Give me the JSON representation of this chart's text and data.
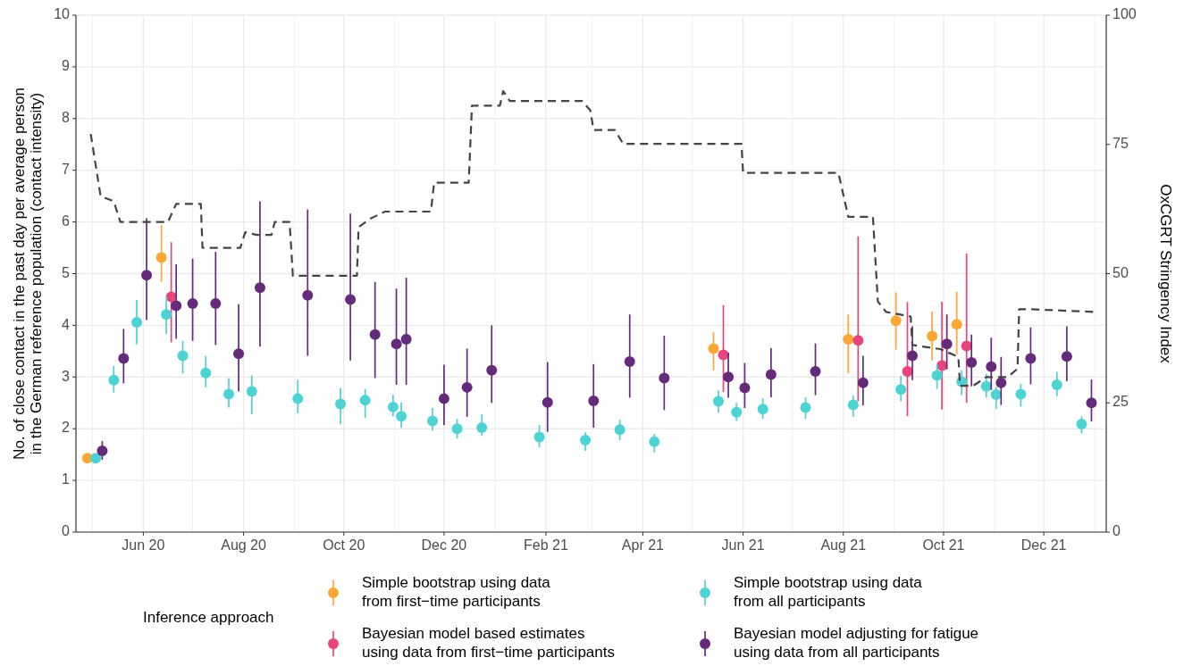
{
  "chart_data": {
    "type": "scatter",
    "ylabel": "No. of close contact in the past day per average person\nin the German reference population (contact intensity)",
    "y2label": "OxCGRT Stringency Index",
    "legend_title": "Inference approach",
    "legend": "bottom",
    "grid": true,
    "marker": "circle",
    "xlim": [
      "2020-04-21",
      "2022-01-08"
    ],
    "xticks": [
      {
        "value": "2020-05-01",
        "label": null
      },
      {
        "value": "2020-06-01",
        "label": "Jun 20"
      },
      {
        "value": "2020-07-01",
        "label": null
      },
      {
        "value": "2020-08-01",
        "label": "Aug 20"
      },
      {
        "value": "2020-09-01",
        "label": null
      },
      {
        "value": "2020-10-01",
        "label": "Oct 20"
      },
      {
        "value": "2020-11-01",
        "label": null
      },
      {
        "value": "2020-12-01",
        "label": "Dec 20"
      },
      {
        "value": "2021-01-01",
        "label": null
      },
      {
        "value": "2021-02-01",
        "label": "Feb 21"
      },
      {
        "value": "2021-03-01",
        "label": null
      },
      {
        "value": "2021-04-01",
        "label": "Apr 21"
      },
      {
        "value": "2021-05-01",
        "label": null
      },
      {
        "value": "2021-06-01",
        "label": "Jun 21"
      },
      {
        "value": "2021-07-01",
        "label": null
      },
      {
        "value": "2021-08-01",
        "label": "Aug 21"
      },
      {
        "value": "2021-09-01",
        "label": null
      },
      {
        "value": "2021-10-01",
        "label": "Oct 21"
      },
      {
        "value": "2021-11-01",
        "label": null
      },
      {
        "value": "2021-12-01",
        "label": "Dec 21"
      },
      {
        "value": "2022-01-01",
        "label": null
      }
    ],
    "ylim": [
      0,
      10
    ],
    "yticks": [
      0,
      1,
      2,
      3,
      4,
      5,
      6,
      7,
      8,
      9,
      10
    ],
    "y2lim": [
      0,
      100
    ],
    "y2ticks": [
      0,
      25,
      50,
      75,
      100
    ],
    "series": [
      {
        "name": "Simple bootstrap using data\nfrom first−time participants",
        "color": "#fca636",
        "x": [
          "2020-04-28",
          "2020-06-12",
          "2021-05-14",
          "2021-08-04",
          "2021-09-02",
          "2021-09-24",
          "2021-10-09"
        ],
        "values": [
          1.43,
          5.31,
          3.55,
          3.73,
          4.09,
          3.79,
          4.02
        ],
        "errors": [
          null,
          [
            4.84,
            5.94
          ],
          [
            3.13,
            3.87
          ],
          [
            3.07,
            4.21
          ],
          [
            3.53,
            4.64
          ],
          [
            3.32,
            4.27
          ],
          [
            3.44,
            4.65
          ]
        ]
      },
      {
        "name": "Bayesian model based estimates\nusing data from first−time participants",
        "color": "#e7457b",
        "x": [
          "2020-06-18",
          "2021-05-20",
          "2021-08-10",
          "2021-09-09",
          "2021-09-30",
          "2021-10-15"
        ],
        "values": [
          4.55,
          3.43,
          3.71,
          3.11,
          3.22,
          3.6
        ],
        "errors": [
          [
            3.67,
            5.61
          ],
          [
            2.71,
            4.39
          ],
          [
            2.53,
            5.72
          ],
          [
            2.24,
            4.45
          ],
          [
            2.37,
            4.46
          ],
          [
            2.5,
            5.39
          ]
        ]
      },
      {
        "name": "Simple bootstrap using data\nfrom all participants",
        "color": "#4dd3d3",
        "x": [
          "2020-05-03",
          "2020-05-14",
          "2020-05-28",
          "2020-06-15",
          "2020-06-25",
          "2020-07-09",
          "2020-07-23",
          "2020-08-06",
          "2020-09-03",
          "2020-09-29",
          "2020-10-14",
          "2020-10-31",
          "2020-11-05",
          "2020-11-24",
          "2020-12-09",
          "2020-12-24",
          "2021-01-28",
          "2021-02-25",
          "2021-03-18",
          "2021-04-08",
          "2021-05-17",
          "2021-05-28",
          "2021-06-13",
          "2021-07-09",
          "2021-08-07",
          "2021-09-05",
          "2021-09-27",
          "2021-10-12",
          "2021-10-27",
          "2021-11-02",
          "2021-11-17",
          "2021-12-09",
          "2021-12-24"
        ],
        "values": [
          1.43,
          2.94,
          4.06,
          4.21,
          3.41,
          3.08,
          2.67,
          2.72,
          2.58,
          2.48,
          2.55,
          2.42,
          2.24,
          2.15,
          2.0,
          2.02,
          1.84,
          1.78,
          1.98,
          1.75,
          2.53,
          2.32,
          2.38,
          2.41,
          2.46,
          2.76,
          3.03,
          2.91,
          2.82,
          2.66,
          2.67,
          2.85,
          2.09
        ],
        "errors": [
          null,
          [
            2.7,
            3.22
          ],
          [
            3.63,
            4.49
          ],
          [
            3.83,
            4.56
          ],
          [
            3.07,
            3.7
          ],
          [
            2.8,
            3.41
          ],
          [
            2.41,
            2.98
          ],
          [
            2.28,
            3.03
          ],
          [
            2.3,
            2.94
          ],
          [
            2.09,
            2.79
          ],
          [
            2.21,
            2.77
          ],
          [
            2.24,
            2.66
          ],
          [
            2.02,
            2.51
          ],
          [
            1.96,
            2.4
          ],
          [
            1.81,
            2.19
          ],
          [
            1.86,
            2.28
          ],
          [
            1.64,
            2.07
          ],
          [
            1.57,
            1.93
          ],
          [
            1.78,
            2.17
          ],
          [
            1.54,
            1.9
          ],
          [
            2.31,
            2.74
          ],
          [
            2.15,
            2.5
          ],
          [
            2.19,
            2.59
          ],
          [
            2.19,
            2.61
          ],
          [
            2.23,
            2.64
          ],
          [
            2.53,
            3.02
          ],
          [
            2.77,
            3.25
          ],
          [
            2.65,
            3.13
          ],
          [
            2.6,
            3.06
          ],
          [
            2.38,
            2.81
          ],
          [
            2.43,
            2.87
          ],
          [
            2.63,
            3.1
          ],
          [
            1.91,
            2.24
          ]
        ]
      },
      {
        "name": "Bayesian model adjusting for fatigue\nusing data from all participants",
        "color": "#652a7a",
        "x": [
          "2020-05-07",
          "2020-05-20",
          "2020-06-03",
          "2020-06-21",
          "2020-07-01",
          "2020-07-15",
          "2020-07-29",
          "2020-08-11",
          "2020-09-09",
          "2020-10-05",
          "2020-10-20",
          "2020-11-02",
          "2020-11-08",
          "2020-12-01",
          "2020-12-15",
          "2020-12-30",
          "2021-02-02",
          "2021-03-02",
          "2021-03-24",
          "2021-04-14",
          "2021-05-23",
          "2021-06-02",
          "2021-06-18",
          "2021-07-15",
          "2021-08-13",
          "2021-09-12",
          "2021-10-03",
          "2021-10-18",
          "2021-10-30",
          "2021-11-05",
          "2021-11-23",
          "2021-12-15",
          "2021-12-30"
        ],
        "values": [
          1.57,
          3.36,
          4.97,
          4.38,
          4.42,
          4.42,
          3.45,
          4.73,
          4.58,
          4.5,
          3.82,
          3.64,
          3.73,
          2.58,
          2.8,
          3.13,
          2.51,
          2.54,
          3.3,
          2.98,
          3.0,
          2.79,
          3.05,
          3.11,
          2.89,
          3.41,
          3.64,
          3.28,
          3.2,
          2.89,
          3.36,
          3.4,
          2.5
        ],
        "errors": [
          [
            1.4,
            1.76
          ],
          [
            2.88,
            3.93
          ],
          [
            4.1,
            6.07
          ],
          [
            3.74,
            5.18
          ],
          [
            3.7,
            5.29
          ],
          [
            3.62,
            5.42
          ],
          [
            2.72,
            4.41
          ],
          [
            3.59,
            6.4
          ],
          [
            3.41,
            6.24
          ],
          [
            3.32,
            6.16
          ],
          [
            2.98,
            4.84
          ],
          [
            2.85,
            4.71
          ],
          [
            2.85,
            4.92
          ],
          [
            2.07,
            3.24
          ],
          [
            2.23,
            3.55
          ],
          [
            2.5,
            4.0
          ],
          [
            1.94,
            3.29
          ],
          [
            2.02,
            3.25
          ],
          [
            2.6,
            4.21
          ],
          [
            2.36,
            3.8
          ],
          [
            2.6,
            3.47
          ],
          [
            2.4,
            3.27
          ],
          [
            2.61,
            3.56
          ],
          [
            2.65,
            3.65
          ],
          [
            2.45,
            3.41
          ],
          [
            2.94,
            3.98
          ],
          [
            3.15,
            4.21
          ],
          [
            2.82,
            3.82
          ],
          [
            2.75,
            3.76
          ],
          [
            2.46,
            3.39
          ],
          [
            2.86,
            3.96
          ],
          [
            2.92,
            3.98
          ],
          [
            2.14,
            2.95
          ]
        ]
      },
      {
        "type": "line",
        "axis": "y2",
        "color": "#444444",
        "line_style": "dashed",
        "marker": "none",
        "x": [
          "2020-04-30",
          "2020-05-06",
          "2020-05-14",
          "2020-05-18",
          "2020-06-16",
          "2020-06-21",
          "2020-07-06",
          "2020-07-07",
          "2020-07-30",
          "2020-08-02",
          "2020-08-09",
          "2020-08-18",
          "2020-08-20",
          "2020-08-29",
          "2020-08-31",
          "2020-10-09",
          "2020-10-10",
          "2020-10-17",
          "2020-10-26",
          "2020-11-23",
          "2020-11-25",
          "2020-12-16",
          "2020-12-18",
          "2021-01-04",
          "2021-01-06",
          "2021-01-10",
          "2021-02-23",
          "2021-02-28",
          "2021-03-02",
          "2021-03-15",
          "2021-03-20",
          "2021-05-31",
          "2021-06-01",
          "2021-07-29",
          "2021-08-04",
          "2021-08-19",
          "2021-08-22",
          "2021-08-27",
          "2021-09-11",
          "2021-09-12",
          "2021-09-29",
          "2021-10-10",
          "2021-10-11",
          "2021-10-19",
          "2021-10-27",
          "2021-11-09",
          "2021-11-15",
          "2021-11-16",
          "2021-11-24",
          "2021-12-31"
        ],
        "values": [
          77,
          65,
          64,
          60,
          60,
          63.5,
          63.5,
          55,
          55,
          58,
          57.5,
          57.5,
          60,
          60,
          49.6,
          49.6,
          59,
          60.6,
          62,
          62,
          67.6,
          67.6,
          82.5,
          82.5,
          85.3,
          83.4,
          83.4,
          81.6,
          77.8,
          77.8,
          75.1,
          75.1,
          69.5,
          69.5,
          61,
          61,
          44.6,
          42.6,
          41.7,
          36.2,
          35.4,
          33.9,
          28.3,
          28.3,
          30,
          30,
          31.6,
          43.1,
          43.1,
          42.6
        ]
      }
    ]
  }
}
